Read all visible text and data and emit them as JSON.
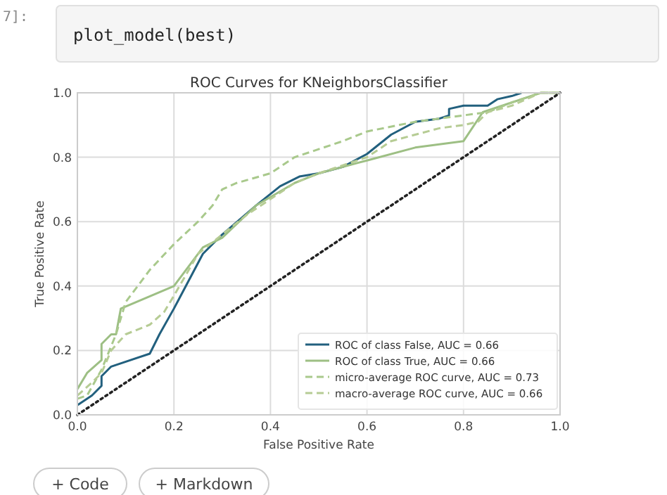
{
  "chart_data": {
    "type": "line",
    "title": "ROC Curves for KNeighborsClassifier",
    "xlabel": "False Positive Rate",
    "ylabel": "True Positive Rate",
    "xlim": [
      0,
      1
    ],
    "ylim": [
      0,
      1
    ],
    "xticks": [
      {
        "value": 0,
        "label": "0.0"
      },
      {
        "value": 0.2,
        "label": "0.2"
      },
      {
        "value": 0.4,
        "label": "0.4"
      },
      {
        "value": 0.6,
        "label": "0.6"
      },
      {
        "value": 0.8,
        "label": "0.8"
      },
      {
        "value": 1,
        "label": "1.0"
      }
    ],
    "yticks": [
      {
        "value": 0,
        "label": "0.0"
      },
      {
        "value": 0.2,
        "label": "0.2"
      },
      {
        "value": 0.4,
        "label": "0.4"
      },
      {
        "value": 0.6,
        "label": "0.6"
      },
      {
        "value": 0.8,
        "label": "0.8"
      },
      {
        "value": 1,
        "label": "1.0"
      }
    ],
    "grid": true,
    "legend": "bottom right",
    "annotations": [
      "7]:",
      "plot_model(best)",
      "+ Code",
      "+ Markdown"
    ],
    "series": [
      {
        "name": "ROC of class False, AUC = 0.66",
        "color": "#22607e",
        "line_style": "solid",
        "x": [
          0,
          0.03,
          0.05,
          0.05,
          0.07,
          0.15,
          0.17,
          0.2,
          0.26,
          0.3,
          0.37,
          0.42,
          0.46,
          0.5,
          0.55,
          0.6,
          0.65,
          0.7,
          0.75,
          0.77,
          0.77,
          0.8,
          0.85,
          0.87,
          0.9,
          0.92
        ],
        "values": [
          0.03,
          0.06,
          0.09,
          0.12,
          0.15,
          0.19,
          0.25,
          0.33,
          0.5,
          0.56,
          0.65,
          0.71,
          0.74,
          0.75,
          0.77,
          0.81,
          0.87,
          0.91,
          0.92,
          0.93,
          0.95,
          0.96,
          0.96,
          0.98,
          0.99,
          1.0
        ]
      },
      {
        "name": "ROC of class True, AUC = 0.66",
        "color": "#9dbf84",
        "line_style": "solid",
        "x": [
          0,
          0.02,
          0.05,
          0.05,
          0.07,
          0.08,
          0.09,
          0.2,
          0.26,
          0.3,
          0.37,
          0.45,
          0.5,
          0.6,
          0.7,
          0.75,
          0.8,
          0.84,
          0.9,
          0.96,
          1
        ],
        "values": [
          0.08,
          0.13,
          0.17,
          0.22,
          0.25,
          0.25,
          0.33,
          0.4,
          0.52,
          0.55,
          0.65,
          0.72,
          0.75,
          0.79,
          0.83,
          0.84,
          0.85,
          0.94,
          0.97,
          1.0,
          1.0
        ]
      },
      {
        "name": "micro-average ROC curve, AUC = 0.73",
        "color": "#a9c98c",
        "line_style": "dashed",
        "x": [
          0,
          0.02,
          0.05,
          0.08,
          0.1,
          0.15,
          0.2,
          0.25,
          0.28,
          0.3,
          0.33,
          0.4,
          0.45,
          0.55,
          0.6,
          0.7,
          0.8,
          0.85,
          0.9,
          0.96,
          1
        ],
        "values": [
          0.05,
          0.06,
          0.14,
          0.25,
          0.35,
          0.45,
          0.53,
          0.6,
          0.65,
          0.7,
          0.72,
          0.75,
          0.8,
          0.85,
          0.88,
          0.91,
          0.93,
          0.94,
          0.97,
          1.0,
          1.0
        ]
      },
      {
        "name": "macro-average ROC curve, AUC = 0.66",
        "color": "#b6cc94",
        "line_style": "dashed",
        "x": [
          0,
          0.03,
          0.05,
          0.07,
          0.1,
          0.15,
          0.18,
          0.2,
          0.25,
          0.3,
          0.35,
          0.45,
          0.5,
          0.6,
          0.65,
          0.7,
          0.75,
          0.8,
          0.83,
          0.85,
          0.9,
          0.96,
          1
        ],
        "values": [
          0.06,
          0.1,
          0.13,
          0.2,
          0.25,
          0.28,
          0.32,
          0.37,
          0.5,
          0.56,
          0.62,
          0.72,
          0.75,
          0.8,
          0.85,
          0.87,
          0.89,
          0.9,
          0.91,
          0.94,
          0.96,
          1.0,
          1.0
        ]
      },
      {
        "color": "#222222",
        "line_style": "dotted",
        "x": [
          0,
          1
        ],
        "values": [
          0,
          1
        ]
      }
    ]
  }
}
